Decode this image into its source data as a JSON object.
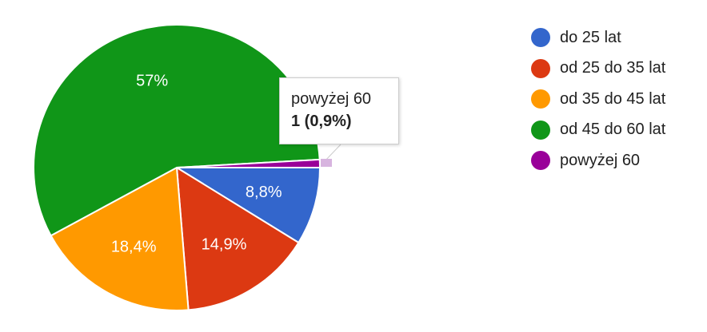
{
  "chart_data": {
    "type": "pie",
    "slices": [
      {
        "name": "do 25 lat",
        "percent": 8.8,
        "label": "8,8%",
        "color": "#3366cc"
      },
      {
        "name": "od 25 do 35 lat",
        "percent": 14.9,
        "label": "14,9%",
        "color": "#dc3912"
      },
      {
        "name": "od 35 do 45 lat",
        "percent": 18.4,
        "label": "18,4%",
        "color": "#ff9900"
      },
      {
        "name": "od 45 do 60 lat",
        "percent": 57.0,
        "label": "57%",
        "color": "#109618"
      },
      {
        "name": "powyżej 60",
        "percent": 0.9,
        "label": "",
        "color": "#990099"
      }
    ],
    "legend_position": "right",
    "highlighted": "powyżej 60"
  },
  "tooltip": {
    "title": "powyżej 60",
    "value": "1 (0,9%)"
  },
  "legend": [
    {
      "label": "do 25 lat",
      "color": "#3366cc"
    },
    {
      "label": "od 25 do 35 lat",
      "color": "#dc3912"
    },
    {
      "label": "od 35 do 45 lat",
      "color": "#ff9900"
    },
    {
      "label": "od 45 do 60 lat",
      "color": "#109618"
    },
    {
      "label": "powyżej 60",
      "color": "#990099"
    }
  ]
}
